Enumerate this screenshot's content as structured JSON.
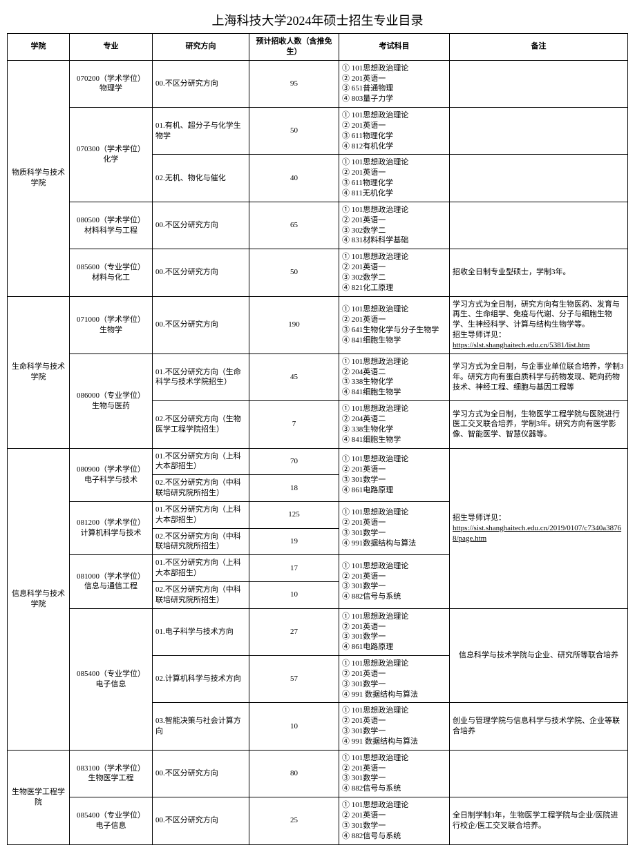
{
  "title": "上海科技大学2024年硕士招生专业目录",
  "headers": {
    "school": "学院",
    "major": "专业",
    "direction": "研究方向",
    "count": "预计招收人数（含推免生）",
    "exam": "考试科目",
    "note": "备注"
  },
  "rows": [
    {
      "schoolSpan": 5,
      "school": "物质科学与技术学院",
      "majorSpan": 1,
      "major": "070200（学术学位）\n物理学",
      "direction": "00.不区分研究方向",
      "count": "95",
      "examSpan": 1,
      "exam": "① 101思想政治理论\n② 201英语一\n③ 651普通物理\n④ 803量子力学",
      "noteSpan": 1,
      "note": ""
    },
    {
      "majorSpan": 2,
      "major": "070300（学术学位）\n化学",
      "direction": "01.有机、超分子与化学生物学",
      "count": "50",
      "examSpan": 1,
      "exam": "① 101思想政治理论\n② 201英语一\n③ 611物理化学\n④ 812有机化学",
      "noteSpan": 1,
      "note": ""
    },
    {
      "direction": "02.无机、物化与催化",
      "count": "40",
      "examSpan": 1,
      "exam": "① 101思想政治理论\n② 201英语一\n③ 611物理化学\n④ 811无机化学",
      "noteSpan": 1,
      "note": ""
    },
    {
      "majorSpan": 1,
      "major": "080500（学术学位）\n材料科学与工程",
      "direction": "00.不区分研究方向",
      "count": "65",
      "examSpan": 1,
      "exam": "① 101思想政治理论\n② 201英语一\n③ 302数学二\n④ 831材料科学基础",
      "noteSpan": 1,
      "note": ""
    },
    {
      "majorSpan": 1,
      "major": "085600（专业学位）\n材料与化工",
      "direction": "00.不区分研究方向",
      "count": "50",
      "examSpan": 1,
      "exam": "① 101思想政治理论\n② 201英语一\n③ 302数学二\n④ 821化工原理",
      "noteSpan": 1,
      "note": "招收全日制专业型硕士，学制3年。"
    },
    {
      "schoolSpan": 3,
      "school": "生命科学与技术学院",
      "majorSpan": 1,
      "major": "071000（学术学位）\n生物学",
      "direction": "00.不区分研究方向",
      "count": "190",
      "examSpan": 1,
      "exam": "① 101思想政治理论\n② 201英语一\n③ 641生物化学与分子生物学\n④ 841细胞生物学",
      "noteSpan": 1,
      "note": "学习方式为全日制，研究方向有生物医药、发育与再生、生命组学、免疫与代谢、分子与细胞生物学、生神经科学、计算与结构生物学等。\n招生导师详见：",
      "link": "https://slst.shanghaitech.edu.cn/5381/list.htm"
    },
    {
      "majorSpan": 2,
      "major": "086000（专业学位）\n生物与医药",
      "direction": "01.不区分研究方向（生命科学与技术学院招生）",
      "count": "45",
      "examSpan": 1,
      "exam": "① 101思想政治理论\n② 204英语二\n③ 338生物化学\n④ 841细胞生物学",
      "noteSpan": 1,
      "note": "学习方式为全日制，与企事业单位联合培养，学制3年。研究方向有蛋白质科学与药物发现、靶向药物技术、神经工程、细胞与基因工程等"
    },
    {
      "direction": "02.不区分研究方向（生物医学工程学院招生）",
      "count": "7",
      "examSpan": 1,
      "exam": "① 101思想政治理论\n② 204英语二\n③ 338生物化学\n④ 841细胞生物学",
      "noteSpan": 1,
      "note": "学习方式为全日制，生物医学工程学院与医院进行医工交叉联合培养，学制3年。研究方向有医学影像、智能医学、智慧仪器等。"
    },
    {
      "schoolSpan": 9,
      "school": "信息科学与技术学院",
      "majorSpan": 2,
      "major": "080900（学术学位）\n电子科学与技术",
      "direction": "01.不区分研究方向（上科大本部招生）",
      "count": "70",
      "examSpan": 2,
      "exam": "① 101思想政治理论\n② 201英语一\n③ 301数学一\n④ 861电路原理",
      "noteSpan": 6,
      "note": "招生导师详见：",
      "link": "https://sist.shanghaitech.edu.cn/2019/0107/c7340a38768/page.htm"
    },
    {
      "direction": "02.不区分研究方向（中科联培研究院所招生）",
      "count": "18"
    },
    {
      "majorSpan": 2,
      "major": "081200（学术学位）\n计算机科学与技术",
      "direction": "01.不区分研究方向（上科大本部招生）",
      "count": "125",
      "examSpan": 2,
      "exam": "① 101思想政治理论\n② 201英语一\n③ 301数学一\n④ 991数据结构与算法"
    },
    {
      "direction": "02.不区分研究方向（中科联培研究院所招生）",
      "count": "19"
    },
    {
      "majorSpan": 2,
      "major": "081000（学术学位）\n信息与通信工程",
      "direction": "01.不区分研究方向（上科大本部招生）",
      "count": "17",
      "examSpan": 2,
      "exam": "① 101思想政治理论\n② 201英语一\n③ 301数学一\n④ 882信号与系统"
    },
    {
      "direction": "02.不区分研究方向（中科联培研究院所招生）",
      "count": "10"
    },
    {
      "majorSpan": 3,
      "major": "085400（专业学位）\n电子信息",
      "direction": "01.电子科学与技术方向",
      "count": "27",
      "examSpan": 1,
      "exam": "① 101思想政治理论\n② 201英语一\n③ 301数学一\n④ 861电路原理",
      "noteSpan": 2,
      "note": "信息科学与技术学院与企业、研究所等联合培养"
    },
    {
      "direction": "02.计算机科学与技术方向",
      "count": "57",
      "examSpan": 1,
      "exam": "① 101思想政治理论\n② 201英语一\n③ 301数学一\n④ 991 数据结构与算法"
    },
    {
      "direction": "03.智能决策与社会计算方向",
      "count": "10",
      "examSpan": 1,
      "exam": "① 101思想政治理论\n② 201英语一\n③ 301数学一\n④ 991 数据结构与算法",
      "noteSpan": 1,
      "note": "创业与管理学院与信息科学与技术学院、企业等联合培养"
    },
    {
      "schoolSpan": 2,
      "school": "生物医学工程学院",
      "majorSpan": 1,
      "major": "083100（学术学位）\n生物医学工程",
      "direction": "00.不区分研究方向",
      "count": "80",
      "examSpan": 1,
      "exam": "① 101思想政治理论\n② 201英语一\n③ 301数学一\n④ 882信号与系统",
      "noteSpan": 1,
      "note": ""
    },
    {
      "majorSpan": 1,
      "major": "085400（专业学位）\n电子信息",
      "direction": "00.不区分研究方向",
      "count": "25",
      "examSpan": 1,
      "exam": "① 101思想政治理论\n② 201英语一\n③ 301数学一\n④ 882信号与系统",
      "noteSpan": 1,
      "note": "全日制学制3年，生物医学工程学院与企业/医院进行校企/医工交叉联合培养。"
    }
  ]
}
